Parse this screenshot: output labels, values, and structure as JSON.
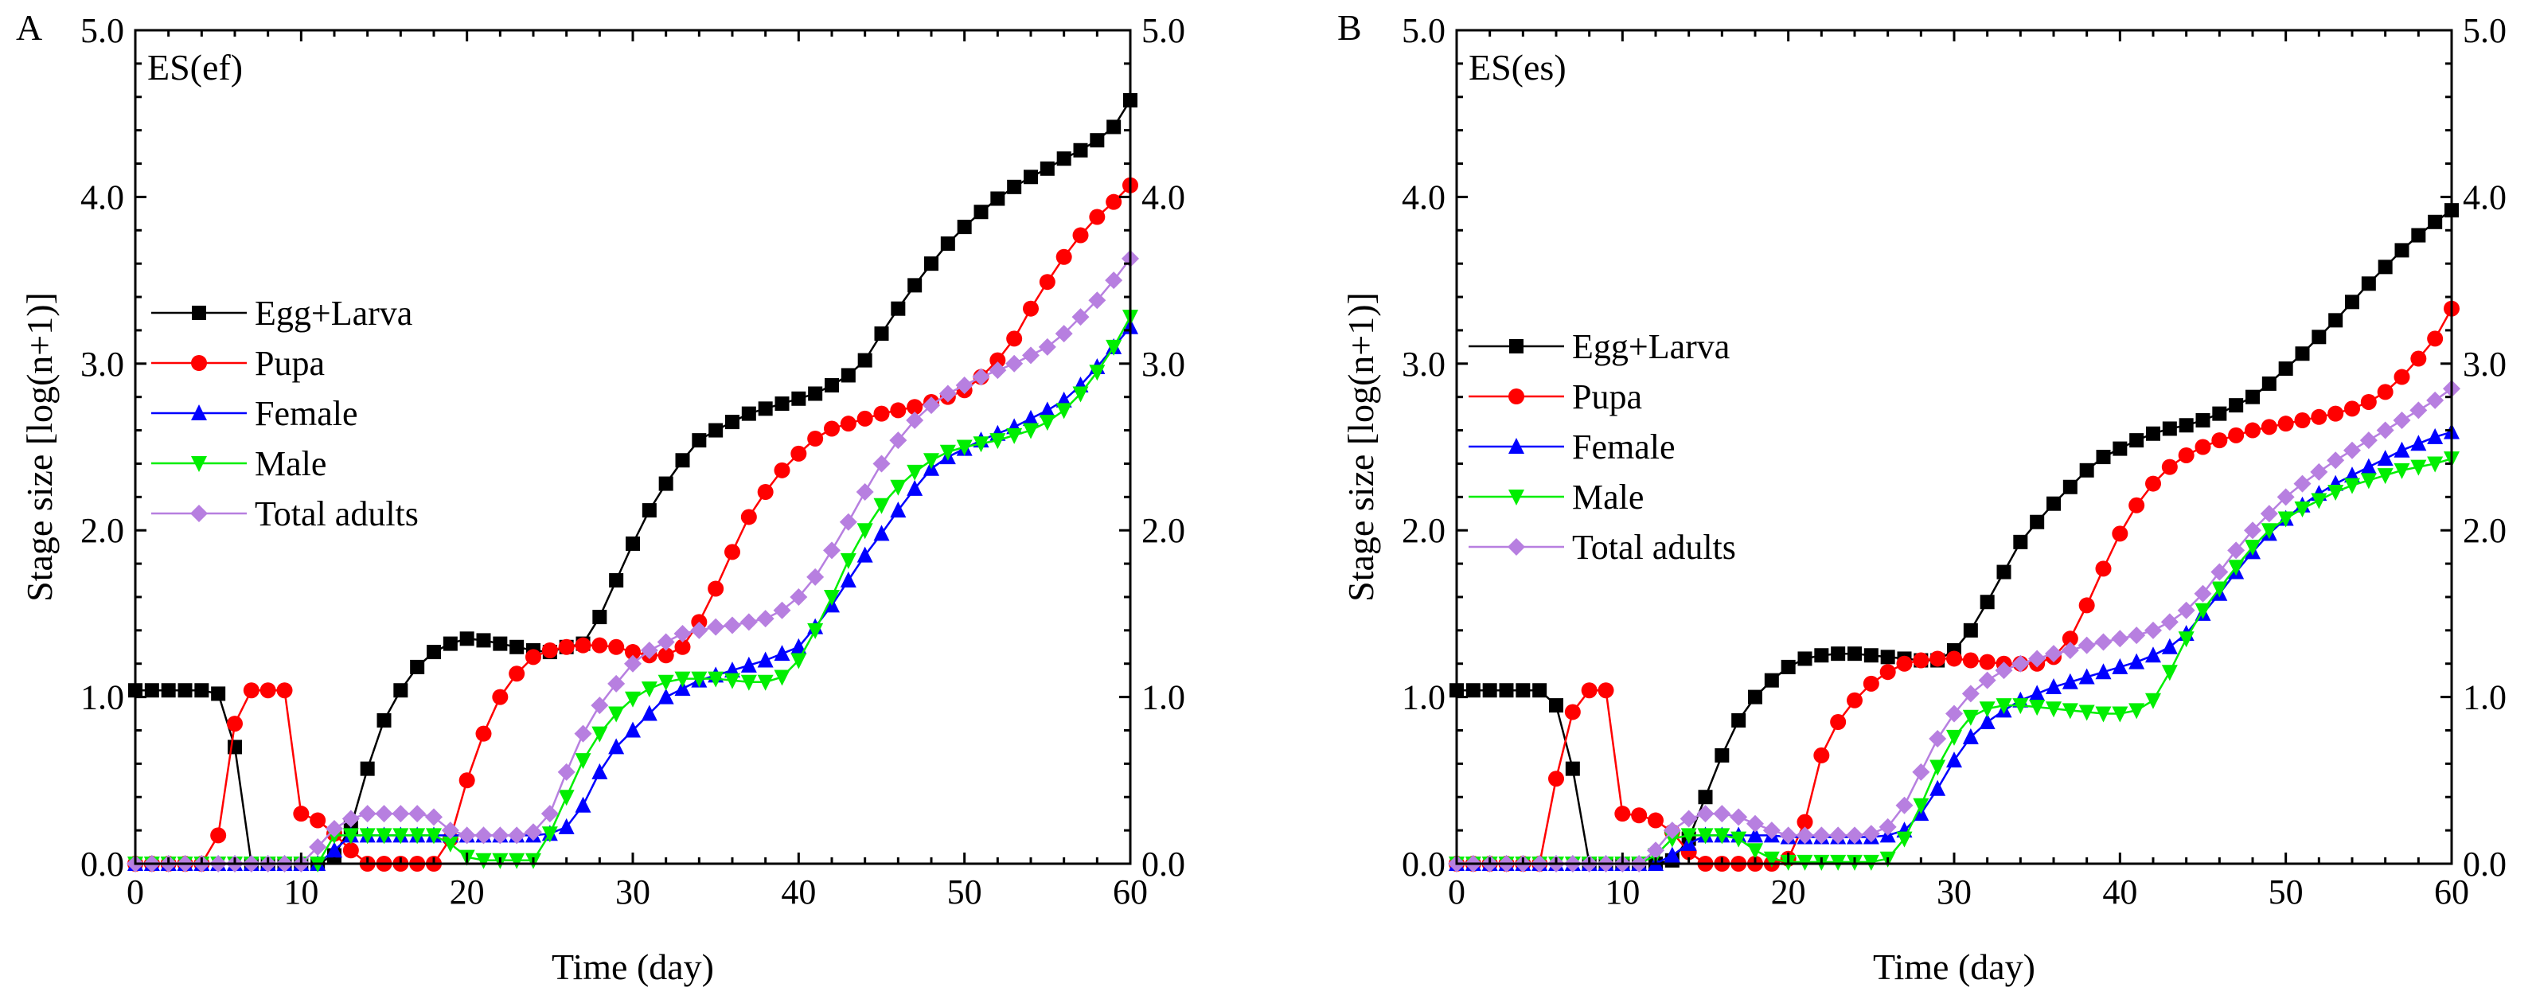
{
  "colors": {
    "Egg+Larva": "#000000",
    "Pupa": "#ff0000",
    "Female": "#0000ff",
    "Male": "#00ee00",
    "Total adults": "#b77fe0"
  },
  "markers": {
    "Egg+Larva": "square",
    "Pupa": "circle",
    "Female": "triangle-up",
    "Male": "triangle-down",
    "Total adults": "diamond"
  },
  "chart_data": [
    {
      "type": "line",
      "panel_label": "A",
      "title": "ES(ef)",
      "xlabel": "Time (day)",
      "ylabel": "Stage size [log(n+1)]",
      "xlim": [
        0,
        60
      ],
      "ylim": [
        0,
        5
      ],
      "x_ticks": [
        "0",
        "10",
        "20",
        "30",
        "40",
        "50",
        "60"
      ],
      "y_ticks": [
        "0.0",
        "1.0",
        "2.0",
        "3.0",
        "4.0",
        "5.0"
      ],
      "right_y_ticks": [
        "0.0",
        "1.0",
        "2.0",
        "3.0",
        "4.0",
        "5.0"
      ],
      "legend": [
        "Egg+Larva",
        "Pupa",
        "Female",
        "Male",
        "Total adults"
      ],
      "x": [
        0,
        1,
        2,
        3,
        4,
        5,
        6,
        7,
        8,
        9,
        10,
        11,
        12,
        13,
        14,
        15,
        16,
        17,
        18,
        19,
        20,
        21,
        22,
        23,
        24,
        25,
        26,
        27,
        28,
        29,
        30,
        31,
        32,
        33,
        34,
        35,
        36,
        37,
        38,
        39,
        40,
        41,
        42,
        43,
        44,
        45,
        46,
        47,
        48,
        49,
        50,
        51,
        52,
        53,
        54,
        55,
        56,
        57,
        58,
        59,
        60
      ],
      "series": [
        {
          "name": "Egg+Larva",
          "values": [
            1.04,
            1.04,
            1.04,
            1.04,
            1.04,
            1.02,
            0.7,
            0,
            0,
            0,
            0,
            0,
            0.05,
            0.22,
            0.57,
            0.86,
            1.04,
            1.18,
            1.27,
            1.32,
            1.35,
            1.34,
            1.32,
            1.3,
            1.28,
            1.27,
            1.3,
            1.32,
            1.48,
            1.7,
            1.92,
            2.12,
            2.28,
            2.42,
            2.54,
            2.6,
            2.65,
            2.7,
            2.73,
            2.76,
            2.79,
            2.82,
            2.87,
            2.93,
            3.02,
            3.18,
            3.33,
            3.47,
            3.6,
            3.72,
            3.82,
            3.91,
            3.99,
            4.06,
            4.12,
            4.17,
            4.23,
            4.28,
            4.34,
            4.42,
            4.58
          ]
        },
        {
          "name": "Pupa",
          "values": [
            0,
            0,
            0,
            0,
            0,
            0.17,
            0.84,
            1.04,
            1.04,
            1.04,
            0.3,
            0.26,
            0.18,
            0.08,
            0,
            0,
            0,
            0,
            0,
            0.15,
            0.5,
            0.78,
            1.0,
            1.14,
            1.24,
            1.28,
            1.3,
            1.31,
            1.31,
            1.3,
            1.27,
            1.25,
            1.25,
            1.3,
            1.45,
            1.65,
            1.87,
            2.08,
            2.23,
            2.36,
            2.46,
            2.55,
            2.61,
            2.64,
            2.67,
            2.7,
            2.72,
            2.74,
            2.77,
            2.8,
            2.84,
            2.92,
            3.02,
            3.15,
            3.33,
            3.49,
            3.64,
            3.77,
            3.88,
            3.97,
            4.07
          ]
        },
        {
          "name": "Female",
          "values": [
            0,
            0,
            0,
            0,
            0,
            0,
            0,
            0,
            0,
            0,
            0,
            0,
            0.08,
            0.17,
            0.17,
            0.17,
            0.17,
            0.17,
            0.17,
            0.17,
            0.17,
            0.17,
            0.17,
            0.17,
            0.17,
            0.18,
            0.22,
            0.35,
            0.55,
            0.7,
            0.8,
            0.9,
            1.0,
            1.05,
            1.1,
            1.13,
            1.16,
            1.19,
            1.22,
            1.26,
            1.3,
            1.42,
            1.55,
            1.7,
            1.85,
            1.98,
            2.12,
            2.25,
            2.37,
            2.44,
            2.49,
            2.54,
            2.58,
            2.62,
            2.67,
            2.72,
            2.78,
            2.87,
            2.98,
            3.1,
            3.22
          ]
        },
        {
          "name": "Male",
          "values": [
            0,
            0,
            0,
            0,
            0,
            0,
            0,
            0,
            0,
            0,
            0,
            0,
            0.17,
            0.17,
            0.17,
            0.17,
            0.17,
            0.17,
            0.17,
            0.12,
            0.04,
            0.02,
            0.02,
            0.02,
            0.02,
            0.18,
            0.4,
            0.62,
            0.78,
            0.9,
            0.99,
            1.05,
            1.09,
            1.11,
            1.11,
            1.11,
            1.1,
            1.09,
            1.09,
            1.12,
            1.22,
            1.4,
            1.6,
            1.82,
            2.0,
            2.15,
            2.26,
            2.35,
            2.42,
            2.47,
            2.5,
            2.52,
            2.54,
            2.57,
            2.6,
            2.65,
            2.72,
            2.82,
            2.95,
            3.1,
            3.28
          ]
        },
        {
          "name": "Total adults",
          "values": [
            0,
            0,
            0,
            0,
            0,
            0,
            0,
            0,
            0,
            0,
            0,
            0.1,
            0.21,
            0.27,
            0.3,
            0.3,
            0.3,
            0.3,
            0.28,
            0.2,
            0.17,
            0.17,
            0.17,
            0.17,
            0.19,
            0.3,
            0.55,
            0.78,
            0.95,
            1.08,
            1.2,
            1.28,
            1.33,
            1.38,
            1.4,
            1.42,
            1.43,
            1.45,
            1.47,
            1.52,
            1.6,
            1.72,
            1.88,
            2.05,
            2.23,
            2.4,
            2.54,
            2.66,
            2.75,
            2.82,
            2.87,
            2.92,
            2.96,
            3.0,
            3.05,
            3.1,
            3.18,
            3.28,
            3.38,
            3.5,
            3.63
          ]
        }
      ]
    },
    {
      "type": "line",
      "panel_label": "B",
      "title": "ES(es)",
      "xlabel": "Time (day)",
      "ylabel": "Stage size [log(n+1)]",
      "xlim": [
        0,
        60
      ],
      "ylim": [
        0,
        5
      ],
      "x_ticks": [
        "0",
        "10",
        "20",
        "30",
        "40",
        "50",
        "60"
      ],
      "y_ticks": [
        "0.0",
        "1.0",
        "2.0",
        "3.0",
        "4.0",
        "5.0"
      ],
      "right_y_ticks": [
        "0.0",
        "1.0",
        "2.0",
        "3.0",
        "4.0",
        "5.0"
      ],
      "legend": [
        "Egg+Larva",
        "Pupa",
        "Female",
        "Male",
        "Total adults"
      ],
      "x": [
        0,
        1,
        2,
        3,
        4,
        5,
        6,
        7,
        8,
        9,
        10,
        11,
        12,
        13,
        14,
        15,
        16,
        17,
        18,
        19,
        20,
        21,
        22,
        23,
        24,
        25,
        26,
        27,
        28,
        29,
        30,
        31,
        32,
        33,
        34,
        35,
        36,
        37,
        38,
        39,
        40,
        41,
        42,
        43,
        44,
        45,
        46,
        47,
        48,
        49,
        50,
        51,
        52,
        53,
        54,
        55,
        56,
        57,
        58,
        59,
        60
      ],
      "series": [
        {
          "name": "Egg+Larva",
          "values": [
            1.04,
            1.04,
            1.04,
            1.04,
            1.04,
            1.04,
            0.95,
            0.57,
            0,
            0,
            0,
            0,
            0,
            0.02,
            0.15,
            0.4,
            0.65,
            0.86,
            1.0,
            1.1,
            1.18,
            1.23,
            1.25,
            1.26,
            1.26,
            1.25,
            1.24,
            1.23,
            1.22,
            1.22,
            1.28,
            1.4,
            1.57,
            1.75,
            1.93,
            2.05,
            2.16,
            2.26,
            2.36,
            2.44,
            2.49,
            2.54,
            2.58,
            2.61,
            2.63,
            2.66,
            2.7,
            2.75,
            2.8,
            2.88,
            2.97,
            3.06,
            3.16,
            3.26,
            3.37,
            3.48,
            3.58,
            3.68,
            3.77,
            3.85,
            3.92
          ]
        },
        {
          "name": "Pupa",
          "values": [
            0,
            0,
            0,
            0,
            0,
            0,
            0.51,
            0.91,
            1.04,
            1.04,
            0.3,
            0.29,
            0.26,
            0.19,
            0.07,
            0,
            0,
            0,
            0,
            0,
            0.03,
            0.25,
            0.65,
            0.85,
            0.98,
            1.08,
            1.15,
            1.2,
            1.22,
            1.23,
            1.23,
            1.22,
            1.21,
            1.2,
            1.2,
            1.2,
            1.24,
            1.35,
            1.55,
            1.77,
            1.98,
            2.15,
            2.28,
            2.38,
            2.45,
            2.5,
            2.54,
            2.57,
            2.6,
            2.62,
            2.64,
            2.66,
            2.68,
            2.7,
            2.73,
            2.77,
            2.83,
            2.92,
            3.03,
            3.15,
            3.33
          ]
        },
        {
          "name": "Female",
          "values": [
            0,
            0,
            0,
            0,
            0,
            0,
            0,
            0,
            0,
            0,
            0,
            0,
            0,
            0.05,
            0.12,
            0.17,
            0.17,
            0.17,
            0.17,
            0.17,
            0.16,
            0.16,
            0.16,
            0.16,
            0.16,
            0.16,
            0.17,
            0.2,
            0.3,
            0.45,
            0.62,
            0.76,
            0.85,
            0.92,
            0.98,
            1.02,
            1.06,
            1.09,
            1.12,
            1.15,
            1.18,
            1.21,
            1.25,
            1.3,
            1.38,
            1.5,
            1.62,
            1.75,
            1.87,
            1.98,
            2.07,
            2.15,
            2.22,
            2.28,
            2.33,
            2.38,
            2.43,
            2.48,
            2.52,
            2.56,
            2.59
          ]
        },
        {
          "name": "Male",
          "values": [
            0,
            0,
            0,
            0,
            0,
            0,
            0,
            0,
            0,
            0,
            0,
            0,
            0.05,
            0.15,
            0.17,
            0.17,
            0.17,
            0.15,
            0.08,
            0.03,
            0.01,
            0.01,
            0.01,
            0.01,
            0.01,
            0.01,
            0.03,
            0.15,
            0.35,
            0.58,
            0.76,
            0.88,
            0.93,
            0.95,
            0.95,
            0.94,
            0.93,
            0.92,
            0.91,
            0.9,
            0.9,
            0.92,
            0.98,
            1.15,
            1.35,
            1.52,
            1.65,
            1.78,
            1.9,
            2.0,
            2.07,
            2.13,
            2.18,
            2.23,
            2.27,
            2.3,
            2.33,
            2.36,
            2.38,
            2.4,
            2.43
          ]
        },
        {
          "name": "Total adults",
          "values": [
            0,
            0,
            0,
            0,
            0,
            0,
            0,
            0,
            0,
            0,
            0,
            0,
            0.08,
            0.2,
            0.27,
            0.3,
            0.3,
            0.28,
            0.24,
            0.2,
            0.17,
            0.17,
            0.17,
            0.17,
            0.17,
            0.18,
            0.22,
            0.35,
            0.55,
            0.75,
            0.9,
            1.02,
            1.1,
            1.16,
            1.2,
            1.23,
            1.26,
            1.28,
            1.31,
            1.33,
            1.35,
            1.37,
            1.4,
            1.45,
            1.52,
            1.62,
            1.75,
            1.88,
            2.0,
            2.1,
            2.2,
            2.28,
            2.35,
            2.42,
            2.48,
            2.54,
            2.6,
            2.66,
            2.72,
            2.78,
            2.85
          ]
        }
      ]
    }
  ]
}
